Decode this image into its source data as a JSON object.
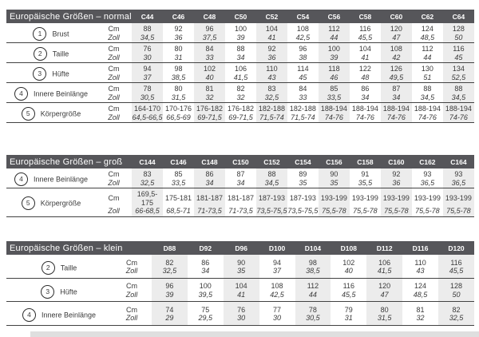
{
  "palette": {
    "header_bg": "#56565a",
    "header_text": "#ffffff",
    "column_stripe": "#ececec",
    "divider_line": "#424242",
    "body_text": "#3a3a3a",
    "bottom_band": "#dfdfdf"
  },
  "unit_labels": {
    "cm": "Cm",
    "zoll": "Zoll"
  },
  "tables": [
    {
      "id": "normal",
      "title": "Europäische Größen – normal",
      "columns": [
        "C44",
        "C46",
        "C48",
        "C50",
        "C52",
        "C54",
        "C56",
        "C58",
        "C60",
        "C62",
        "C64"
      ],
      "rows": [
        {
          "num": "1",
          "label": "Brust",
          "cm": [
            "88",
            "92",
            "96",
            "100",
            "104",
            "108",
            "112",
            "116",
            "120",
            "124",
            "128"
          ],
          "zoll": [
            "34,5",
            "36",
            "37,5",
            "39",
            "41",
            "42,5",
            "44",
            "45,5",
            "47",
            "48,5",
            "50"
          ]
        },
        {
          "num": "2",
          "label": "Taille",
          "cm": [
            "76",
            "80",
            "84",
            "88",
            "92",
            "96",
            "100",
            "104",
            "108",
            "112",
            "116"
          ],
          "zoll": [
            "30",
            "31",
            "33",
            "34",
            "36",
            "38",
            "39",
            "41",
            "42",
            "44",
            "45"
          ]
        },
        {
          "num": "3",
          "label": "Hüfte",
          "cm": [
            "94",
            "98",
            "102",
            "106",
            "110",
            "114",
            "118",
            "122",
            "126",
            "130",
            "134"
          ],
          "zoll": [
            "37",
            "38,5",
            "40",
            "41,5",
            "43",
            "45",
            "46",
            "48",
            "49,5",
            "51",
            "52,5"
          ]
        },
        {
          "num": "4",
          "label": "Innere Beinlänge",
          "cm": [
            "78",
            "80",
            "81",
            "82",
            "83",
            "84",
            "85",
            "86",
            "87",
            "88",
            "88"
          ],
          "zoll": [
            "30,5",
            "31,5",
            "32",
            "32",
            "32,5",
            "33",
            "33,5",
            "34",
            "34",
            "34,5",
            "34,5"
          ]
        },
        {
          "num": "5",
          "label": "Körpergröße",
          "cm": [
            "164-170",
            "170-176",
            "176-182",
            "176-182",
            "182-188",
            "182-188",
            "188-194",
            "188-194",
            "188-194",
            "188-194",
            "188-194"
          ],
          "zoll": [
            "64,5-66,5",
            "66,5-69",
            "69-71,5",
            "69-71,5",
            "71,5-74",
            "71,5-74",
            "74-76",
            "74-76",
            "74-76",
            "74-76",
            "74-76"
          ]
        }
      ]
    },
    {
      "id": "gross",
      "title": "Europäische Größen – groß",
      "columns": [
        "C144",
        "C146",
        "C148",
        "C150",
        "C152",
        "C154",
        "C156",
        "C158",
        "C160",
        "C162",
        "C164"
      ],
      "rows": [
        {
          "num": "4",
          "label": "Innere Beinlänge",
          "cm": [
            "83",
            "85",
            "86",
            "87",
            "88",
            "89",
            "90",
            "91",
            "92",
            "93",
            "93"
          ],
          "zoll": [
            "32,5",
            "33,5",
            "34",
            "34",
            "34,5",
            "35",
            "35",
            "35,5",
            "36",
            "36,5",
            "36,5"
          ]
        },
        {
          "num": "5",
          "label": "Körpergröße",
          "cm": [
            "169,5-175",
            "175-181",
            "181-187",
            "181-187",
            "187-193",
            "187-193",
            "193-199",
            "193-199",
            "193-199",
            "193-199",
            "193-199"
          ],
          "zoll": [
            "66-68,5",
            "68,5-71",
            "71-73,5",
            "71-73,5",
            "73,5-75,5",
            "73,5-75,5",
            "75,5-78",
            "75,5-78",
            "75,5-78",
            "75,5-78",
            "75,5-78"
          ]
        }
      ]
    },
    {
      "id": "klein",
      "title": "Europäische Größen – klein",
      "columns": [
        "D88",
        "D92",
        "D96",
        "D100",
        "D104",
        "D108",
        "D112",
        "D116",
        "D120"
      ],
      "rows": [
        {
          "num": "2",
          "label": "Taille",
          "cm": [
            "82",
            "86",
            "90",
            "94",
            "98",
            "102",
            "106",
            "110",
            "116"
          ],
          "zoll": [
            "32,5",
            "34",
            "35",
            "37",
            "38,5",
            "40",
            "41,5",
            "43",
            "45,5"
          ]
        },
        {
          "num": "3",
          "label": "Hüfte",
          "cm": [
            "96",
            "100",
            "104",
            "108",
            "112",
            "116",
            "120",
            "124",
            "128"
          ],
          "zoll": [
            "39",
            "39,5",
            "41",
            "42,5",
            "44",
            "45,5",
            "47",
            "48,5",
            "50"
          ]
        },
        {
          "num": "4",
          "label": "Innere Beinlänge",
          "cm": [
            "74",
            "75",
            "76",
            "77",
            "78",
            "79",
            "80",
            "81",
            "82"
          ],
          "zoll": [
            "29",
            "29,5",
            "30",
            "30",
            "30,5",
            "31",
            "31,5",
            "32",
            "32,5"
          ]
        }
      ]
    }
  ]
}
